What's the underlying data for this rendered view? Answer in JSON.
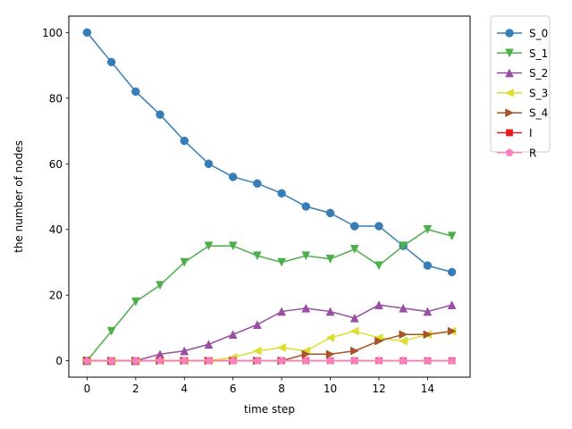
{
  "chart_data": {
    "type": "line",
    "title": "",
    "xlabel": "time step",
    "ylabel": "the number of nodes",
    "xlim": [
      -0.75,
      15.75
    ],
    "ylim": [
      -5,
      105
    ],
    "xticks": [
      0,
      2,
      4,
      6,
      8,
      10,
      12,
      14
    ],
    "yticks": [
      0,
      20,
      40,
      60,
      80,
      100
    ],
    "grid": false,
    "legend_position": "outside-top-right",
    "x": [
      0,
      1,
      2,
      3,
      4,
      5,
      6,
      7,
      8,
      9,
      10,
      11,
      12,
      13,
      14,
      15
    ],
    "series": [
      {
        "name": "S_0",
        "color": "#377eb8",
        "marker": "circle",
        "values": [
          100,
          91,
          82,
          75,
          67,
          60,
          56,
          54,
          51,
          47,
          45,
          41,
          41,
          35,
          29,
          27
        ]
      },
      {
        "name": "S_1",
        "color": "#4daf4a",
        "marker": "triangle-down",
        "values": [
          0,
          9,
          18,
          23,
          30,
          35,
          35,
          32,
          30,
          32,
          31,
          34,
          29,
          35,
          40,
          38
        ]
      },
      {
        "name": "S_2",
        "color": "#984ea3",
        "marker": "triangle-up",
        "values": [
          0,
          0,
          0,
          2,
          3,
          5,
          8,
          11,
          15,
          16,
          15,
          13,
          17,
          16,
          15,
          17
        ]
      },
      {
        "name": "S_3",
        "color": "#dede2e",
        "marker": "triangle-left",
        "values": [
          0,
          0,
          0,
          0,
          0,
          0,
          1,
          3,
          4,
          3,
          7,
          9,
          7,
          6,
          8,
          9
        ]
      },
      {
        "name": "S_4",
        "color": "#a65628",
        "marker": "triangle-right",
        "values": [
          0,
          0,
          0,
          0,
          0,
          0,
          0,
          0,
          0,
          2,
          2,
          3,
          6,
          8,
          8,
          9
        ]
      },
      {
        "name": "I",
        "color": "#e41a1c",
        "marker": "square",
        "values": [
          0,
          0,
          0,
          0,
          0,
          0,
          0,
          0,
          0,
          0,
          0,
          0,
          0,
          0,
          0,
          0
        ]
      },
      {
        "name": "R",
        "color": "#f781bf",
        "marker": "pentagon",
        "values": [
          0,
          0,
          0,
          0,
          0,
          0,
          0,
          0,
          0,
          0,
          0,
          0,
          0,
          0,
          0,
          0
        ]
      }
    ]
  }
}
